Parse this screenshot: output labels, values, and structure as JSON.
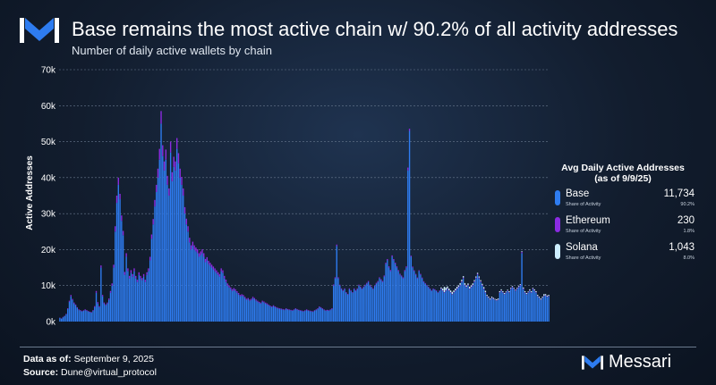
{
  "header": {
    "title": "Base remains the most active chain w/ 90.2% of all activity addresses",
    "subtitle": "Number of daily active wallets by chain"
  },
  "legend": {
    "title_line1": "Avg Daily Active Addresses",
    "title_line2": "(as of 9/9/25)",
    "share_label": "Share of Activity",
    "items": [
      {
        "name": "Base",
        "value": "11,734",
        "share": "90.2%",
        "color": "#2e7cf0"
      },
      {
        "name": "Ethereum",
        "value": "230",
        "share": "1.8%",
        "color": "#8b2be2"
      },
      {
        "name": "Solana",
        "value": "1,043",
        "share": "8.0%",
        "color": "#cdeeff"
      }
    ]
  },
  "footer": {
    "data_as_of_label": "Data as of:",
    "data_as_of_value": "September 9, 2025",
    "source_label": "Source:",
    "source_value": "Dune@virtual_protocol",
    "brand": "Messari"
  },
  "colors": {
    "base": "#2e7cf0",
    "ethereum": "#8b2be2",
    "solana": "#cdeeff",
    "gridline": "#6a7a8f"
  },
  "chart_data": {
    "type": "bar",
    "stacked": true,
    "ylabel": "Active Addresses",
    "ylim": [
      0,
      70000
    ],
    "yticks": [
      0,
      10000,
      20000,
      30000,
      40000,
      50000,
      60000,
      70000
    ],
    "ytick_labels": [
      "0k",
      "10k",
      "20k",
      "30k",
      "40k",
      "50k",
      "60k",
      "70k"
    ],
    "grid": "horizontal-dashed",
    "legend_position": "right",
    "series": [
      {
        "name": "Base",
        "values": [
          1000,
          800,
          1200,
          1500,
          2000,
          3500,
          5500,
          7000,
          6000,
          5000,
          4500,
          3800,
          3200,
          3000,
          2800,
          3000,
          3200,
          3000,
          2800,
          2600,
          2500,
          3000,
          4000,
          8000,
          5000,
          4000,
          15000,
          7000,
          5000,
          4500,
          5000,
          6000,
          8000,
          10000,
          15000,
          25000,
          33000,
          38000,
          34000,
          28000,
          24000,
          13000,
          18000,
          14000,
          12000,
          13500,
          12500,
          14000,
          12000,
          11000,
          13000,
          12000,
          11500,
          12500,
          11000,
          13000,
          14000,
          17000,
          23000,
          27000,
          32000,
          36000,
          40000,
          45000,
          55000,
          46000,
          42000,
          45000,
          38000,
          35000,
          47000,
          39000,
          43000,
          42000,
          48000,
          44000,
          40000,
          38000,
          35000,
          30000,
          27000,
          25000,
          22000,
          20000,
          21000,
          20000,
          19500,
          19000,
          18000,
          18500,
          19000,
          18000,
          16500,
          17000,
          16000,
          15500,
          15000,
          14500,
          14000,
          13500,
          13000,
          12500,
          14000,
          13500,
          12000,
          11000,
          10000,
          9500,
          9000,
          8500,
          8800,
          8500,
          8000,
          7500,
          7000,
          7200,
          7000,
          6500,
          6000,
          6200,
          5800,
          6000,
          6500,
          6200,
          5800,
          5500,
          5200,
          5000,
          5500,
          5300,
          5000,
          4800,
          4500,
          4200,
          4000,
          4300,
          4000,
          3800,
          3600,
          3500,
          3400,
          3300,
          3200,
          3500,
          3300,
          3200,
          3100,
          3000,
          3200,
          3500,
          3300,
          3100,
          3000,
          2900,
          2800,
          3000,
          3200,
          3000,
          2900,
          2800,
          2700,
          3000,
          3200,
          3500,
          4000,
          3800,
          3500,
          3200,
          3000,
          3100,
          3000,
          3200,
          3500,
          10000,
          12000,
          21000,
          12000,
          10000,
          9000,
          8500,
          9000,
          8000,
          7500,
          9000,
          8500,
          8000,
          9000,
          8500,
          9000,
          10000,
          9500,
          9000,
          9500,
          10000,
          10500,
          11000,
          10000,
          9500,
          9000,
          9800,
          10500,
          11000,
          12000,
          11500,
          11000,
          12500,
          16000,
          17000,
          15000,
          14000,
          18000,
          17000,
          16000,
          15000,
          14000,
          13000,
          12500,
          12000,
          14000,
          15000,
          42000,
          53000,
          18000,
          15000,
          14000,
          13000,
          12000,
          14000,
          13000,
          12000,
          11000,
          10500,
          10000,
          9500,
          9000,
          8500,
          9000,
          8800,
          8500,
          8000,
          8500,
          9000,
          8500,
          8000,
          8500,
          9000,
          8500,
          8000,
          7500,
          8000,
          8500,
          9000,
          9500,
          10000,
          11000,
          12000,
          10000,
          9500,
          10000,
          9000,
          9500,
          10000,
          11000,
          12000,
          13000,
          12000,
          11000,
          10000,
          9000,
          8000,
          7000,
          6500,
          6000,
          6500,
          6200,
          6000,
          5800,
          6000,
          8000,
          8500,
          8000,
          7500,
          8000,
          8500,
          8000,
          9000,
          9500,
          9000,
          8500,
          9000,
          9500,
          10000,
          19000,
          9000,
          8000,
          7500,
          8000,
          8500,
          8000,
          9000,
          8500,
          8000,
          7000,
          6500,
          6000,
          6500,
          7000,
          7200,
          6800,
          7000
        ]
      },
      {
        "name": "Ethereum",
        "values": [
          100,
          100,
          100,
          100,
          150,
          200,
          300,
          400,
          300,
          300,
          250,
          200,
          200,
          200,
          150,
          150,
          200,
          200,
          150,
          150,
          150,
          200,
          300,
          500,
          400,
          300,
          600,
          400,
          300,
          300,
          300,
          400,
          500,
          600,
          800,
          1500,
          2000,
          2000,
          1500,
          1500,
          1200,
          800,
          1000,
          800,
          700,
          800,
          700,
          800,
          700,
          600,
          700,
          700,
          600,
          700,
          600,
          700,
          800,
          1000,
          1200,
          1500,
          1800,
          2000,
          2500,
          3000,
          3500,
          3000,
          2500,
          2800,
          2500,
          2000,
          3000,
          2500,
          2800,
          2500,
          3000,
          2800,
          2500,
          2200,
          2000,
          1800,
          1600,
          1500,
          1300,
          1200,
          1200,
          1200,
          1100,
          1100,
          1000,
          1000,
          1100,
          1000,
          900,
          900,
          900,
          850,
          800,
          800,
          800,
          750,
          700,
          700,
          800,
          750,
          700,
          650,
          600,
          550,
          500,
          500,
          500,
          500,
          450,
          450,
          400,
          400,
          400,
          380,
          350,
          350,
          330,
          350,
          380,
          350,
          330,
          300,
          300,
          280,
          300,
          280,
          280,
          270,
          250,
          240,
          230,
          240,
          230,
          220,
          210,
          200,
          200,
          190,
          180,
          200,
          190,
          180,
          170,
          170,
          180,
          200,
          190,
          180,
          170,
          160,
          160,
          170,
          180,
          170,
          160,
          160,
          150,
          170,
          180,
          200,
          220,
          200,
          190,
          180,
          170,
          170,
          170,
          180,
          200,
          300,
          300,
          400,
          300,
          250,
          230,
          220,
          230,
          200,
          190,
          230,
          220,
          200,
          230,
          220,
          230,
          250,
          240,
          230,
          240,
          250,
          260,
          270,
          250,
          240,
          230,
          250,
          260,
          270,
          300,
          290,
          280,
          300,
          350,
          380,
          350,
          330,
          400,
          380,
          360,
          340,
          320,
          300,
          290,
          280,
          320,
          340,
          800,
          600,
          300,
          280,
          260,
          250,
          240,
          260,
          250,
          240,
          220,
          210,
          200,
          190,
          180,
          170,
          180,
          180,
          170,
          160,
          170,
          180,
          170,
          160,
          170,
          180,
          170,
          160,
          150,
          160,
          170,
          180,
          190,
          200,
          220,
          240,
          200,
          190,
          200,
          180,
          190,
          200,
          220,
          240,
          260,
          240,
          220,
          200,
          180,
          160,
          140,
          130,
          120,
          130,
          120,
          120,
          120,
          120,
          160,
          170,
          160,
          150,
          160,
          170,
          160,
          180,
          190,
          180,
          170,
          180,
          190,
          200,
          350,
          180,
          160,
          150,
          160,
          170,
          160,
          180,
          170,
          160,
          140,
          130,
          120,
          130,
          140,
          140,
          140,
          140
        ]
      },
      {
        "name": "Solana",
        "values": [
          0,
          0,
          0,
          0,
          0,
          0,
          0,
          0,
          0,
          0,
          0,
          0,
          0,
          0,
          0,
          0,
          0,
          0,
          0,
          0,
          0,
          0,
          0,
          0,
          0,
          0,
          0,
          0,
          0,
          0,
          0,
          0,
          0,
          0,
          0,
          0,
          0,
          0,
          0,
          0,
          0,
          0,
          0,
          0,
          0,
          0,
          0,
          0,
          0,
          0,
          0,
          0,
          0,
          0,
          0,
          0,
          0,
          0,
          0,
          0,
          0,
          0,
          0,
          0,
          0,
          0,
          0,
          0,
          0,
          0,
          0,
          0,
          0,
          0,
          0,
          0,
          0,
          0,
          0,
          0,
          0,
          0,
          0,
          0,
          0,
          0,
          0,
          0,
          0,
          0,
          0,
          0,
          0,
          0,
          0,
          0,
          0,
          0,
          0,
          0,
          0,
          0,
          0,
          0,
          0,
          0,
          0,
          0,
          0,
          0,
          0,
          0,
          0,
          0,
          0,
          0,
          0,
          0,
          0,
          0,
          0,
          0,
          0,
          0,
          0,
          0,
          0,
          0,
          0,
          0,
          0,
          0,
          0,
          0,
          0,
          0,
          0,
          0,
          0,
          0,
          0,
          0,
          0,
          0,
          0,
          0,
          0,
          0,
          0,
          0,
          0,
          0,
          0,
          0,
          0,
          0,
          0,
          0,
          0,
          0,
          0,
          0,
          0,
          0,
          0,
          0,
          0,
          0,
          0,
          0,
          0,
          0,
          0,
          0,
          0,
          0,
          0,
          0,
          0,
          0,
          0,
          0,
          0,
          0,
          0,
          0,
          0,
          0,
          0,
          0,
          0,
          0,
          0,
          0,
          0,
          0,
          0,
          0,
          0,
          0,
          0,
          0,
          0,
          0,
          0,
          0,
          0,
          0,
          0,
          0,
          0,
          0,
          0,
          0,
          0,
          0,
          0,
          0,
          0,
          0,
          0,
          0,
          0,
          0,
          0,
          0,
          0,
          0,
          0,
          0,
          0,
          0,
          0,
          0,
          0,
          0,
          0,
          0,
          0,
          0,
          0,
          300,
          500,
          1500,
          800,
          600,
          500,
          500,
          600,
          500,
          500,
          500,
          400,
          500,
          400,
          400,
          500,
          400,
          400,
          500,
          400,
          400,
          300,
          300,
          300,
          300,
          300,
          300,
          400,
          400,
          300,
          300,
          300,
          300,
          300,
          200,
          300,
          300,
          300,
          300,
          300,
          300,
          200,
          200,
          300,
          200,
          200,
          200,
          200,
          200,
          200,
          200,
          200,
          300,
          300,
          300,
          200,
          300,
          300,
          200,
          300,
          300,
          300,
          300,
          300,
          300,
          500,
          300,
          300,
          300,
          300,
          300,
          300,
          300,
          200,
          200,
          200,
          200,
          200,
          200,
          200,
          300,
          200,
          200
        ]
      }
    ]
  }
}
